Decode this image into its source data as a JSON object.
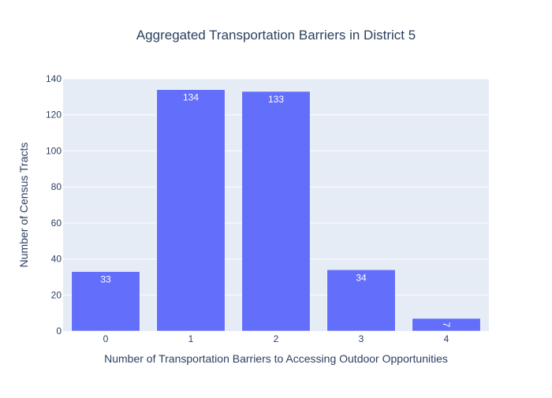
{
  "chart_data": {
    "type": "bar",
    "title": "Aggregated Transportation Barriers in District 5",
    "xlabel": "Number of Transportation Barriers to Accessing Outdoor Opportunities",
    "ylabel": "Number of Census Tracts",
    "categories": [
      "0",
      "1",
      "2",
      "3",
      "4"
    ],
    "values": [
      33,
      134,
      133,
      34,
      7
    ],
    "ylim": [
      0,
      140
    ],
    "yticks": [
      0,
      20,
      40,
      60,
      80,
      100,
      120,
      140
    ],
    "grid": true,
    "legend": "none",
    "colors": {
      "bar": "#636efa",
      "plot_bg": "#e5ecf6",
      "grid": "#ffffff",
      "text": "#2a3f5f",
      "label": "#ffffff"
    }
  }
}
